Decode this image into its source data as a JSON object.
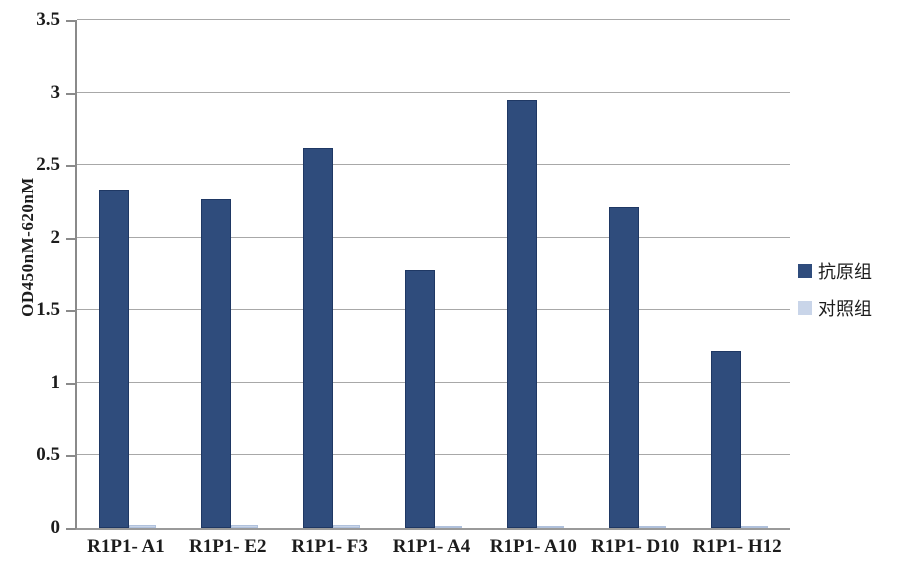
{
  "chart_data": {
    "type": "bar",
    "title": "",
    "xlabel": "",
    "ylabel": "OD450nM-620nM",
    "ylim": [
      0,
      3.5
    ],
    "ytick_step": 0.5,
    "ytick_labels": [
      "0",
      "0.5",
      "1",
      "1.5",
      "2",
      "2.5",
      "3",
      "3.5"
    ],
    "grid": true,
    "legend_position": "right",
    "categories": [
      "R1P1- A1",
      "R1P1- E2",
      "R1P1- F3",
      "R1P1- A4",
      "R1P1- A10",
      "R1P1- D10",
      "R1P1- H12"
    ],
    "series": [
      {
        "name": "抗原组",
        "color": "#2f4c7c",
        "border_color": "#1f3864",
        "values": [
          2.33,
          2.27,
          2.62,
          1.78,
          2.95,
          2.21,
          1.22
        ]
      },
      {
        "name": "对照组",
        "color": "#c9d5e9",
        "border_color": "#b0c1dc",
        "values": [
          0.02,
          0.02,
          0.02,
          0.01,
          0.01,
          0.01,
          0.01
        ]
      }
    ]
  },
  "colors": {
    "gridline": "#a8a8a8",
    "axis": "#8a8a8a",
    "text": "#1c1c1c",
    "background": "#ffffff"
  }
}
